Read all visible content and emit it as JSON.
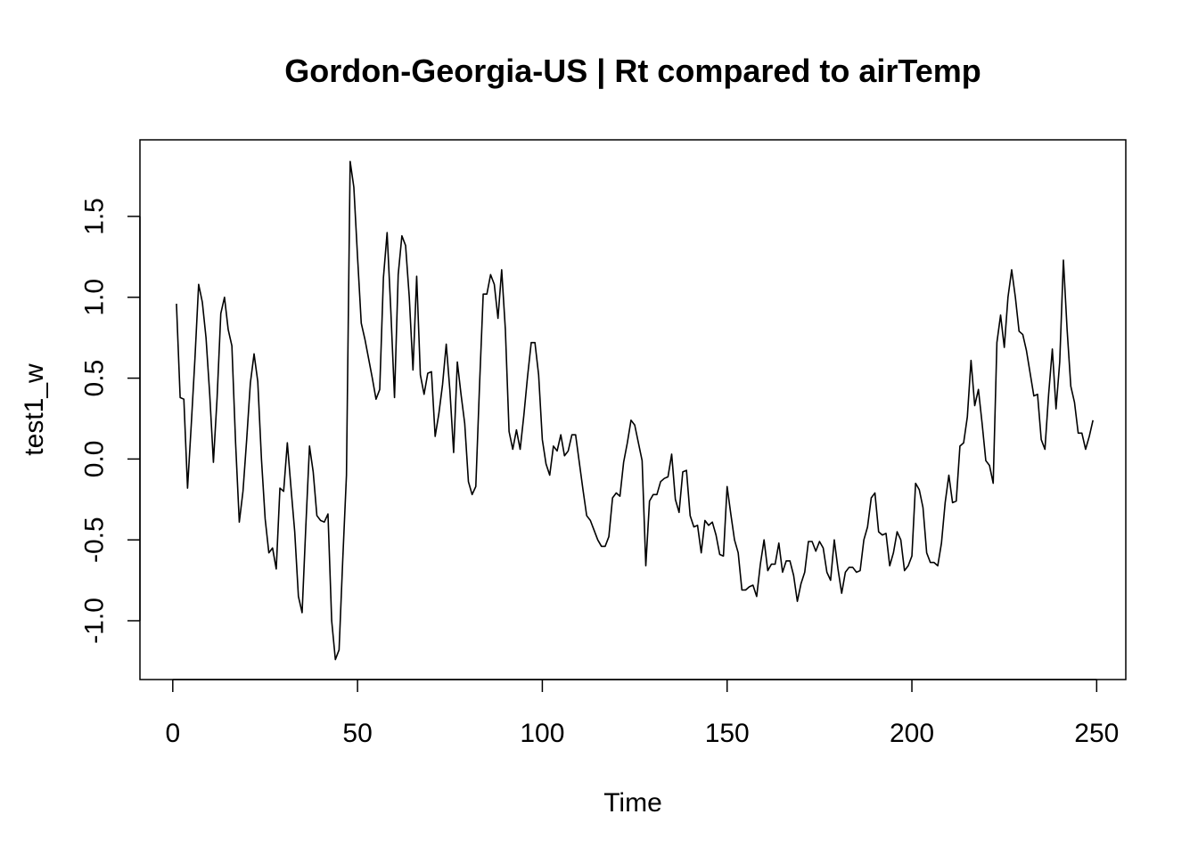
{
  "chart_data": {
    "type": "line",
    "title": "Gordon-Georgia-US | Rt compared to airTemp",
    "xlabel": "Time",
    "ylabel": "test1_w",
    "xlim": [
      1,
      248
    ],
    "ylim": [
      -1.24,
      1.85
    ],
    "x_ticks": [
      0,
      50,
      100,
      150,
      200,
      250
    ],
    "y_ticks": [
      -1.0,
      -0.5,
      0.0,
      0.5,
      1.0,
      1.5
    ],
    "x_tick_labels": [
      "0",
      "50",
      "100",
      "150",
      "200",
      "250"
    ],
    "y_tick_labels": [
      "-1.0",
      "-0.5",
      "0.0",
      "0.5",
      "1.0",
      "1.5"
    ],
    "grid": false,
    "line_color": "#000000",
    "series": [
      {
        "values": [
          0.96,
          0.38,
          0.37,
          -0.18,
          0.21,
          0.62,
          1.08,
          0.97,
          0.75,
          0.4,
          -0.02,
          0.38,
          0.9,
          1.0,
          0.8,
          0.7,
          0.1,
          -0.39,
          -0.2,
          0.12,
          0.47,
          0.65,
          0.48,
          0.0,
          -0.37,
          -0.58,
          -0.55,
          -0.68,
          -0.18,
          -0.2,
          0.1,
          -0.18,
          -0.45,
          -0.85,
          -0.95,
          -0.42,
          0.08,
          -0.08,
          -0.35,
          -0.38,
          -0.39,
          -0.34,
          -1.0,
          -1.24,
          -1.18,
          -0.62,
          -0.1,
          1.84,
          1.68,
          1.25,
          0.84,
          0.74,
          0.62,
          0.5,
          0.37,
          0.43,
          1.12,
          1.4,
          0.92,
          0.38,
          1.14,
          1.38,
          1.32,
          1.0,
          0.55,
          1.13,
          0.52,
          0.4,
          0.53,
          0.54,
          0.14,
          0.28,
          0.46,
          0.71,
          0.42,
          0.04,
          0.6,
          0.4,
          0.22,
          -0.14,
          -0.22,
          -0.17,
          0.45,
          1.02,
          1.02,
          1.14,
          1.08,
          0.87,
          1.17,
          0.8,
          0.17,
          0.06,
          0.18,
          0.06,
          0.27,
          0.51,
          0.72,
          0.72,
          0.52,
          0.12,
          -0.03,
          -0.1,
          0.08,
          0.05,
          0.15,
          0.02,
          0.05,
          0.15,
          0.15,
          -0.02,
          -0.19,
          -0.35,
          -0.38,
          -0.44,
          -0.5,
          -0.54,
          -0.54,
          -0.48,
          -0.24,
          -0.21,
          -0.23,
          -0.02,
          0.1,
          0.24,
          0.21,
          0.1,
          -0.01,
          -0.66,
          -0.26,
          -0.22,
          -0.22,
          -0.14,
          -0.12,
          -0.11,
          0.03,
          -0.25,
          -0.33,
          -0.08,
          -0.07,
          -0.35,
          -0.42,
          -0.41,
          -0.58,
          -0.38,
          -0.41,
          -0.39,
          -0.47,
          -0.59,
          -0.6,
          -0.17,
          -0.34,
          -0.5,
          -0.58,
          -0.81,
          -0.81,
          -0.79,
          -0.78,
          -0.85,
          -0.65,
          -0.5,
          -0.69,
          -0.65,
          -0.65,
          -0.52,
          -0.7,
          -0.63,
          -0.63,
          -0.72,
          -0.88,
          -0.77,
          -0.7,
          -0.51,
          -0.51,
          -0.57,
          -0.51,
          -0.55,
          -0.7,
          -0.75,
          -0.5,
          -0.68,
          -0.83,
          -0.7,
          -0.67,
          -0.67,
          -0.7,
          -0.69,
          -0.5,
          -0.42,
          -0.24,
          -0.21,
          -0.45,
          -0.47,
          -0.46,
          -0.66,
          -0.58,
          -0.45,
          -0.5,
          -0.69,
          -0.66,
          -0.6,
          -0.15,
          -0.19,
          -0.3,
          -0.58,
          -0.64,
          -0.64,
          -0.66,
          -0.52,
          -0.27,
          -0.1,
          -0.27,
          -0.26,
          0.08,
          0.1,
          0.26,
          0.61,
          0.33,
          0.43,
          0.22,
          -0.01,
          -0.04,
          -0.15,
          0.72,
          0.89,
          0.69,
          1.0,
          1.17,
          1.0,
          0.79,
          0.77,
          0.67,
          0.53,
          0.39,
          0.4,
          0.12,
          0.06,
          0.4,
          0.68,
          0.31,
          0.6,
          1.23,
          0.8,
          0.45,
          0.35,
          0.16,
          0.16,
          0.06,
          0.14,
          0.24
        ]
      }
    ]
  }
}
